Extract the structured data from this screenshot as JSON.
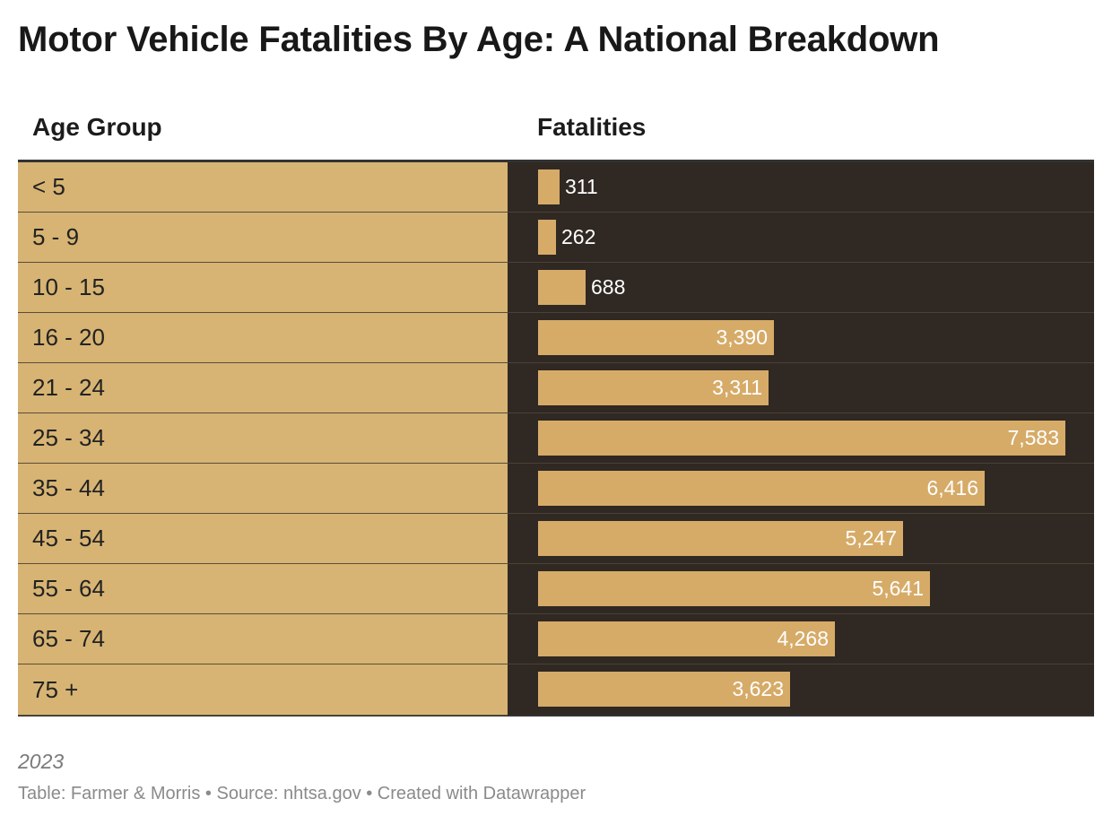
{
  "chart_data": {
    "type": "bar",
    "title": "Motor Vehicle Fatalities By Age: A National Breakdown",
    "column_headers": [
      "Age Group",
      "Fatalities"
    ],
    "categories": [
      "< 5",
      "5 - 9",
      "10 - 15",
      "16 - 20",
      "21 - 24",
      "25 - 34",
      "35 - 44",
      "45 - 54",
      "55 - 64",
      "65 - 74",
      "75 +"
    ],
    "values": [
      311,
      262,
      688,
      3390,
      3311,
      7583,
      6416,
      5247,
      5641,
      4268,
      3623
    ],
    "value_labels": [
      "311",
      "262",
      "688",
      "3,390",
      "3,311",
      "7,583",
      "6,416",
      "5,247",
      "5,641",
      "4,268",
      "3,623"
    ],
    "xlim": [
      0,
      7583
    ],
    "grid": false,
    "colors": {
      "bar": "#d6ab68",
      "bar_background": "#302822",
      "category_background": "#d7b473"
    }
  },
  "note": "2023",
  "footer": "Table: Farmer & Morris • Source: nhtsa.gov • Created with Datawrapper"
}
